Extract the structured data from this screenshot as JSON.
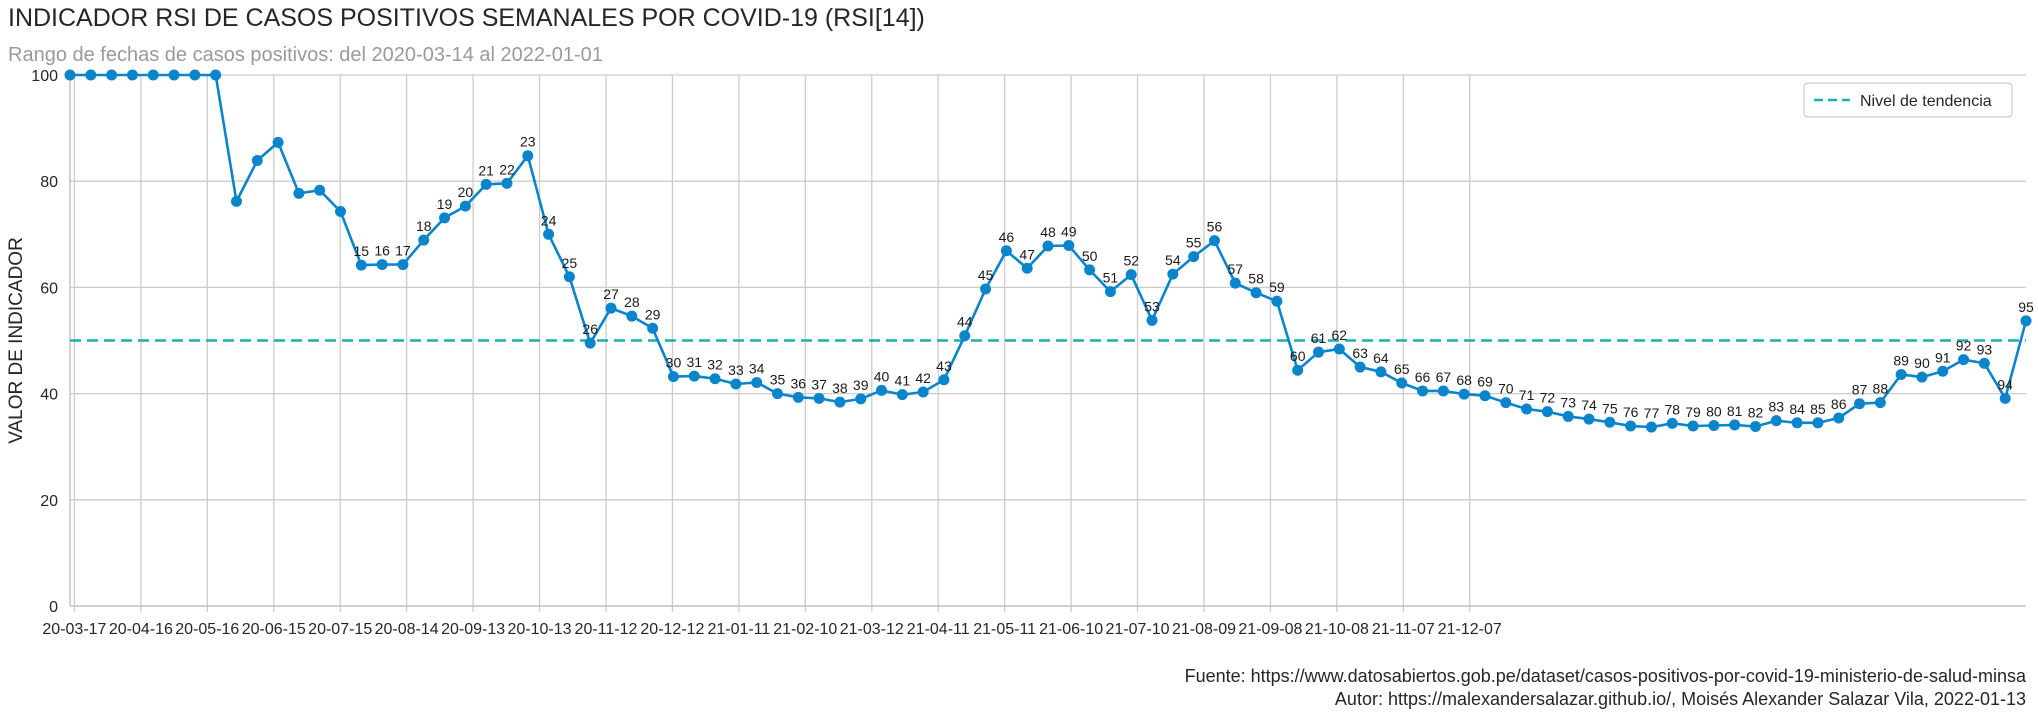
{
  "header": {
    "title": "INDICADOR RSI DE CASOS POSITIVOS SEMANALES POR COVID-19 (RSI[14])",
    "subtitle": "Rango de fechas de casos positivos: del 2020-03-14 al 2022-01-01"
  },
  "footer": {
    "source": "Fuente: https://www.datosabiertos.gob.pe/dataset/casos-positivos-por-covid-19-ministerio-de-salud-minsa",
    "author": "Autor: https://malexandersalazar.github.io/, Moisés Alexander Salazar Vila, 2022-01-13"
  },
  "colors": {
    "series": "#0a85cc",
    "trend": "#1aaeb0",
    "grid": "#cccccc",
    "text": "#262626"
  },
  "chart_data": {
    "type": "line",
    "title": "INDICADOR RSI DE CASOS POSITIVOS SEMANALES POR COVID-19 (RSI[14])",
    "subtitle": "Rango de fechas de casos positivos: del 2020-03-14 al 2022-01-01",
    "xlabel": "",
    "ylabel": "VALOR DE INDICADOR",
    "ylim": [
      0,
      100
    ],
    "yticks": [
      0,
      20,
      40,
      60,
      80,
      100
    ],
    "xlim": [
      "20-03-17",
      "22-01-05"
    ],
    "xticks": [
      "20-03-17",
      "20-04-16",
      "20-05-16",
      "20-06-15",
      "20-07-15",
      "20-08-14",
      "20-09-13",
      "20-10-13",
      "20-11-12",
      "20-12-12",
      "21-01-11",
      "21-02-10",
      "21-03-12",
      "21-04-11",
      "21-05-11",
      "21-06-10",
      "21-07-10",
      "21-08-09",
      "21-09-08",
      "21-10-08",
      "21-11-07",
      "21-12-07"
    ],
    "grid": true,
    "legend": {
      "position": "top-right",
      "entries": [
        "Nivel de tendencia"
      ]
    },
    "trend_level": 50,
    "series": [
      {
        "values": [
          100,
          100,
          100,
          100,
          100,
          100,
          100,
          100,
          76.2,
          83.9,
          87.3,
          77.7,
          78.3,
          74.3,
          64.2,
          64.3,
          64.3,
          68.9,
          73.1,
          75.3,
          79.4,
          79.6,
          84.8,
          70,
          62,
          49.5,
          56.1,
          54.6,
          52.3,
          43.2,
          43.3,
          42.8,
          41.8,
          42.1,
          40,
          39.3,
          39.1,
          38.4,
          39,
          40.6,
          39.8,
          40.3,
          42.6,
          50.9,
          59.7,
          66.9,
          63.6,
          67.8,
          67.9,
          63.3,
          59.2,
          62.4,
          53.8,
          62.5,
          65.8,
          68.8,
          60.8,
          59,
          57.4,
          44.4,
          47.8,
          48.4,
          45,
          44.1,
          42,
          40.5,
          40.5,
          39.9,
          39.6,
          38.3,
          37.1,
          36.6,
          35.7,
          35.2,
          34.6,
          33.9,
          33.7,
          34.4,
          33.9,
          34,
          34.1,
          33.8,
          34.9,
          34.5,
          34.5,
          35.4,
          38.1,
          38.3,
          43.6,
          43.1,
          44.2,
          46.4,
          45.7,
          39.1,
          53.7
        ]
      }
    ],
    "point_labels": [
      {
        "i": 14,
        "text": "15"
      },
      {
        "i": 15,
        "text": "16"
      },
      {
        "i": 16,
        "text": "17"
      },
      {
        "i": 17,
        "text": "18"
      },
      {
        "i": 18,
        "text": "19"
      },
      {
        "i": 19,
        "text": "20"
      },
      {
        "i": 20,
        "text": "21"
      },
      {
        "i": 21,
        "text": "22"
      },
      {
        "i": 22,
        "text": "23"
      },
      {
        "i": 23,
        "text": "24"
      },
      {
        "i": 24,
        "text": "25"
      },
      {
        "i": 25,
        "text": "26"
      },
      {
        "i": 26,
        "text": "27"
      },
      {
        "i": 27,
        "text": "28"
      },
      {
        "i": 28,
        "text": "29"
      },
      {
        "i": 29,
        "text": "30"
      },
      {
        "i": 30,
        "text": "31"
      },
      {
        "i": 31,
        "text": "32"
      },
      {
        "i": 32,
        "text": "33"
      },
      {
        "i": 33,
        "text": "34"
      },
      {
        "i": 34,
        "text": "35"
      },
      {
        "i": 35,
        "text": "36"
      },
      {
        "i": 36,
        "text": "37"
      },
      {
        "i": 37,
        "text": "38"
      },
      {
        "i": 38,
        "text": "39"
      },
      {
        "i": 39,
        "text": "40"
      },
      {
        "i": 40,
        "text": "41"
      },
      {
        "i": 41,
        "text": "42"
      },
      {
        "i": 42,
        "text": "43"
      },
      {
        "i": 43,
        "text": "44"
      },
      {
        "i": 44,
        "text": "45"
      },
      {
        "i": 45,
        "text": "46"
      },
      {
        "i": 46,
        "text": "47"
      },
      {
        "i": 47,
        "text": "48"
      },
      {
        "i": 48,
        "text": "49"
      },
      {
        "i": 49,
        "text": "50"
      },
      {
        "i": 50,
        "text": "51"
      },
      {
        "i": 51,
        "text": "52"
      },
      {
        "i": 52,
        "text": "53"
      },
      {
        "i": 53,
        "text": "54"
      },
      {
        "i": 54,
        "text": "55"
      },
      {
        "i": 55,
        "text": "56"
      },
      {
        "i": 56,
        "text": "57"
      },
      {
        "i": 57,
        "text": "58"
      },
      {
        "i": 58,
        "text": "59"
      },
      {
        "i": 59,
        "text": "60"
      },
      {
        "i": 60,
        "text": "61"
      },
      {
        "i": 61,
        "text": "62"
      },
      {
        "i": 62,
        "text": "63"
      },
      {
        "i": 63,
        "text": "64"
      },
      {
        "i": 64,
        "text": "65"
      },
      {
        "i": 65,
        "text": "66"
      },
      {
        "i": 66,
        "text": "67"
      },
      {
        "i": 67,
        "text": "68"
      },
      {
        "i": 68,
        "text": "69"
      },
      {
        "i": 69,
        "text": "70"
      },
      {
        "i": 70,
        "text": "71"
      },
      {
        "i": 71,
        "text": "72"
      },
      {
        "i": 72,
        "text": "73"
      },
      {
        "i": 73,
        "text": "74"
      },
      {
        "i": 74,
        "text": "75"
      },
      {
        "i": 75,
        "text": "76"
      },
      {
        "i": 76,
        "text": "77"
      },
      {
        "i": 77,
        "text": "78"
      },
      {
        "i": 78,
        "text": "79"
      },
      {
        "i": 79,
        "text": "80"
      },
      {
        "i": 80,
        "text": "81"
      },
      {
        "i": 81,
        "text": "82"
      },
      {
        "i": 82,
        "text": "83"
      },
      {
        "i": 83,
        "text": "84"
      },
      {
        "i": 84,
        "text": "85"
      },
      {
        "i": 85,
        "text": "86"
      },
      {
        "i": 86,
        "text": "87"
      },
      {
        "i": 87,
        "text": "88"
      },
      {
        "i": 88,
        "text": "89"
      },
      {
        "i": 89,
        "text": "90"
      },
      {
        "i": 90,
        "text": "91"
      },
      {
        "i": 91,
        "text": "92"
      },
      {
        "i": 92,
        "text": "93"
      },
      {
        "i": 93,
        "text": "94"
      },
      {
        "i": 94,
        "text": "95"
      }
    ]
  }
}
